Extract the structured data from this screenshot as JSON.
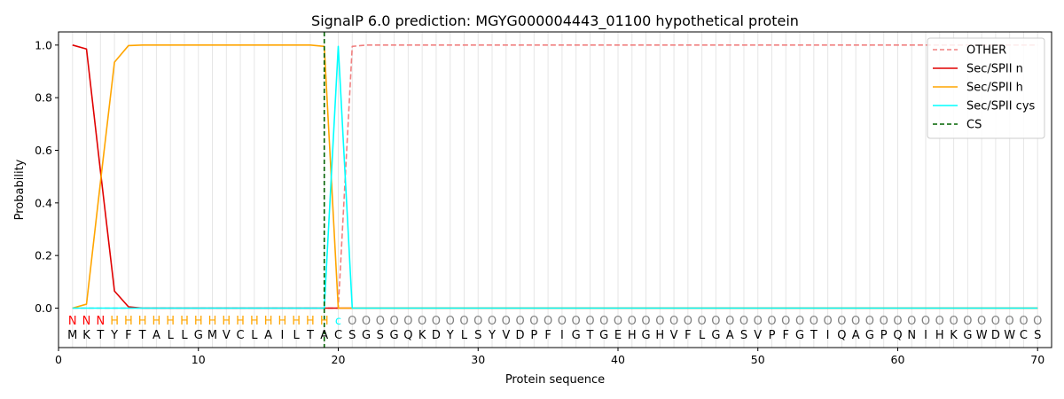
{
  "chart_data": {
    "type": "line",
    "title": "SignalP 6.0 prediction: MGYG000004443_01100 hypothetical protein",
    "xlabel": "Protein sequence",
    "ylabel": "Probability",
    "xlim": [
      0,
      71
    ],
    "ylim": [
      -0.15,
      1.05
    ],
    "xticks": [
      0,
      10,
      20,
      30,
      40,
      50,
      60,
      70
    ],
    "yticks": [
      0.0,
      0.2,
      0.4,
      0.6,
      0.8,
      1.0
    ],
    "ytick_labels": [
      "0.0",
      "0.2",
      "0.4",
      "0.6",
      "0.8",
      "1.0"
    ],
    "legend_position": "top-right",
    "sequence": [
      "M",
      "K",
      "T",
      "Y",
      "F",
      "T",
      "A",
      "L",
      "L",
      "G",
      "M",
      "V",
      "C",
      "L",
      "A",
      "I",
      "L",
      "T",
      "A",
      "C",
      "S",
      "G",
      "S",
      "G",
      "Q",
      "K",
      "D",
      "Y",
      "L",
      "S",
      "Y",
      "V",
      "D",
      "P",
      "F",
      "I",
      "G",
      "T",
      "G",
      "E",
      "H",
      "G",
      "H",
      "V",
      "F",
      "L",
      "G",
      "A",
      "S",
      "V",
      "P",
      "F",
      "G",
      "T",
      "I",
      "Q",
      "A",
      "G",
      "P",
      "Q",
      "N",
      "I",
      "H",
      "K",
      "G",
      "W",
      "D",
      "W",
      "C",
      "S"
    ],
    "labels": [
      "N",
      "N",
      "N",
      "H",
      "H",
      "H",
      "H",
      "H",
      "H",
      "H",
      "H",
      "H",
      "H",
      "H",
      "H",
      "H",
      "H",
      "H",
      "H",
      "C",
      "O",
      "O",
      "O",
      "O",
      "O",
      "O",
      "O",
      "O",
      "O",
      "O",
      "O",
      "O",
      "O",
      "O",
      "O",
      "O",
      "O",
      "O",
      "O",
      "O",
      "O",
      "O",
      "O",
      "O",
      "O",
      "O",
      "O",
      "O",
      "O",
      "O",
      "O",
      "O",
      "O",
      "O",
      "O",
      "O",
      "O",
      "O",
      "O",
      "O",
      "O",
      "O",
      "O",
      "O",
      "O",
      "O",
      "O",
      "O",
      "O",
      "O"
    ],
    "label_colors": {
      "N": "#ff0000",
      "H": "#ffa500",
      "C": "#00ffff",
      "O": "#808080"
    },
    "series": [
      {
        "name": "OTHER",
        "color": "#f08080",
        "dash": "dashed",
        "values": [
          0,
          0,
          0,
          0,
          0,
          0,
          0,
          0,
          0,
          0,
          0,
          0,
          0,
          0,
          0,
          0,
          0,
          0,
          0,
          0,
          0.995,
          1,
          1,
          1,
          1,
          1,
          1,
          1,
          1,
          1,
          1,
          1,
          1,
          1,
          1,
          1,
          1,
          1,
          1,
          1,
          1,
          1,
          1,
          1,
          1,
          1,
          1,
          1,
          1,
          1,
          1,
          1,
          1,
          1,
          1,
          1,
          1,
          1,
          1,
          1,
          1,
          1,
          1,
          1,
          1,
          1,
          1,
          1,
          1,
          1
        ]
      },
      {
        "name": "Sec/SPII n",
        "color": "#e00000",
        "dash": "solid",
        "values": [
          1.0,
          0.985,
          0.52,
          0.065,
          0.005,
          0,
          0,
          0,
          0,
          0,
          0,
          0,
          0,
          0,
          0,
          0,
          0,
          0,
          0,
          0,
          0,
          0,
          0,
          0,
          0,
          0,
          0,
          0,
          0,
          0,
          0,
          0,
          0,
          0,
          0,
          0,
          0,
          0,
          0,
          0,
          0,
          0,
          0,
          0,
          0,
          0,
          0,
          0,
          0,
          0,
          0,
          0,
          0,
          0,
          0,
          0,
          0,
          0,
          0,
          0,
          0,
          0,
          0,
          0,
          0,
          0,
          0,
          0,
          0,
          0
        ]
      },
      {
        "name": "Sec/SPII h",
        "color": "#ffa500",
        "dash": "solid",
        "values": [
          0.0,
          0.015,
          0.48,
          0.935,
          0.998,
          1.0,
          1.0,
          1.0,
          1.0,
          1.0,
          1.0,
          1.0,
          1.0,
          1.0,
          1.0,
          1.0,
          1.0,
          1.0,
          0.995,
          0.0,
          0,
          0,
          0,
          0,
          0,
          0,
          0,
          0,
          0,
          0,
          0,
          0,
          0,
          0,
          0,
          0,
          0,
          0,
          0,
          0,
          0,
          0,
          0,
          0,
          0,
          0,
          0,
          0,
          0,
          0,
          0,
          0,
          0,
          0,
          0,
          0,
          0,
          0,
          0,
          0,
          0,
          0,
          0,
          0,
          0,
          0,
          0,
          0,
          0,
          0
        ]
      },
      {
        "name": "Sec/SPII cys",
        "color": "#00ffff",
        "dash": "solid",
        "values": [
          0,
          0,
          0,
          0,
          0,
          0,
          0,
          0,
          0,
          0,
          0,
          0,
          0,
          0,
          0,
          0,
          0,
          0,
          0,
          0.995,
          0,
          0,
          0,
          0,
          0,
          0,
          0,
          0,
          0,
          0,
          0,
          0,
          0,
          0,
          0,
          0,
          0,
          0,
          0,
          0,
          0,
          0,
          0,
          0,
          0,
          0,
          0,
          0,
          0,
          0,
          0,
          0,
          0,
          0,
          0,
          0,
          0,
          0,
          0,
          0,
          0,
          0,
          0,
          0,
          0,
          0,
          0,
          0,
          0,
          0
        ]
      }
    ],
    "cs": {
      "name": "CS",
      "x": 19,
      "color": "#006400",
      "dash": "dashed"
    }
  }
}
